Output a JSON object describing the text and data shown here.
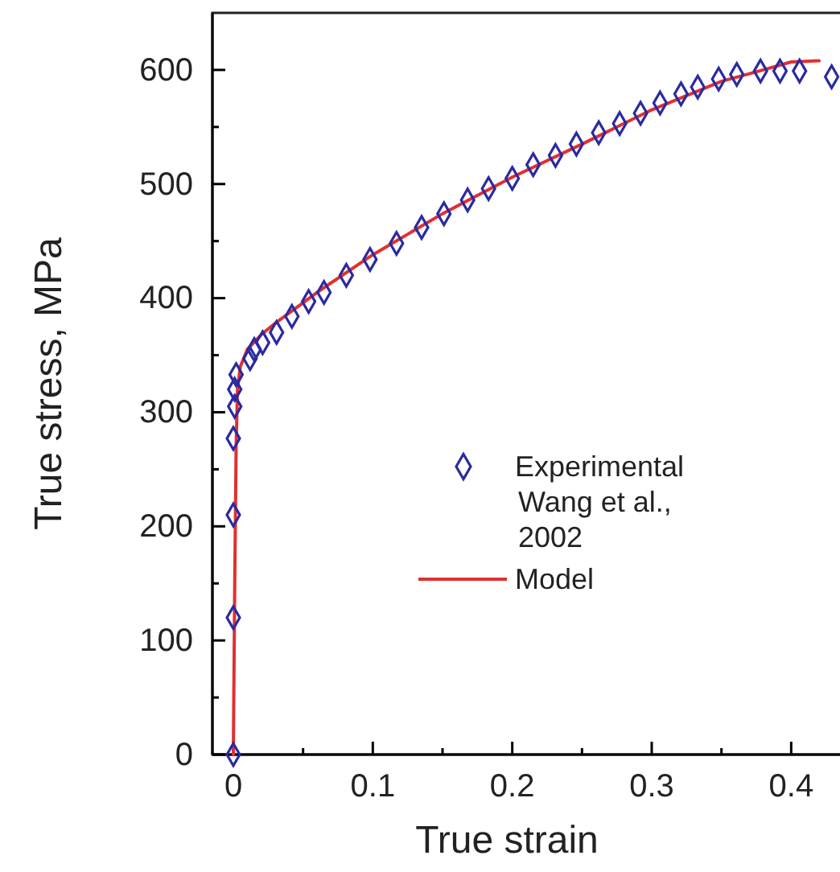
{
  "chart_data": {
    "type": "scatter",
    "xlabel": "True strain",
    "ylabel": "True stress, MPa",
    "xlim": [
      -0.015,
      0.435
    ],
    "xticks": [
      0,
      {
        "value": 0.05,
        "label": null
      },
      0.1,
      {
        "value": 0.15,
        "label": null
      },
      0.2,
      {
        "value": 0.25,
        "label": null
      },
      0.3,
      {
        "value": 0.35,
        "label": null
      },
      0.4
    ],
    "ylim": [
      0,
      650
    ],
    "yticks": [
      0,
      {
        "value": 50,
        "label": null
      },
      100,
      {
        "value": 150,
        "label": null
      },
      200,
      {
        "value": 250,
        "label": null
      },
      300,
      {
        "value": 350,
        "label": null
      },
      400,
      {
        "value": 450,
        "label": null
      },
      500,
      {
        "value": 550,
        "label": null
      },
      600
    ],
    "legend": "bottom right",
    "grid": false,
    "series": [
      {
        "name": "Experimental Wang et al., 2002",
        "marker": "diamond",
        "color": "#2a2aa0",
        "x": [
          0,
          0,
          0,
          0,
          0.001,
          0.001,
          0.002,
          0.012,
          0.015,
          0.021,
          0.031,
          0.042,
          0.054,
          0.065,
          0.081,
          0.098,
          0.117,
          0.135,
          0.151,
          0.168,
          0.183,
          0.2,
          0.215,
          0.231,
          0.246,
          0.262,
          0.277,
          0.292,
          0.306,
          0.321,
          0.333,
          0.348,
          0.361,
          0.378,
          0.392,
          0.406,
          0.429
        ],
        "values": [
          0,
          120,
          210,
          277,
          305,
          320,
          333,
          347,
          355,
          361,
          370,
          384,
          397,
          405,
          420,
          434,
          448,
          462,
          474,
          486,
          496,
          505,
          517,
          525,
          535,
          545,
          553,
          562,
          571,
          579,
          585,
          592,
          596,
          599,
          599,
          599,
          594
        ]
      },
      {
        "name": "Model",
        "type": "line",
        "marker": "none",
        "line_style": "solid",
        "color": "#e03030",
        "x": [
          0,
          0.001,
          0.002,
          0.003,
          0.005,
          0.01,
          0.02,
          0.03,
          0.06,
          0.1,
          0.15,
          0.2,
          0.25,
          0.3,
          0.35,
          0.38,
          0.4,
          0.42
        ],
        "values": [
          0,
          150,
          270,
          320,
          340,
          355,
          368,
          378,
          405,
          438,
          474,
          506,
          535,
          565,
          590,
          600,
          607,
          608
        ]
      }
    ]
  }
}
